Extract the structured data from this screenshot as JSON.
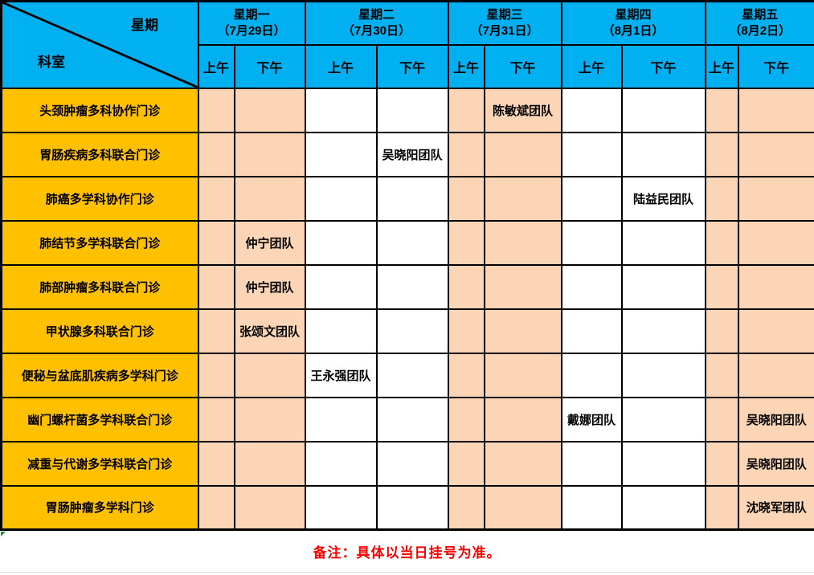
{
  "header": {
    "corner": {
      "week": "星期",
      "dept": "科室"
    },
    "am_label": "上午",
    "pm_label": "下午",
    "days": [
      {
        "label": "星期一",
        "date": "（7月29日）",
        "shaded": true
      },
      {
        "label": "星期二",
        "date": "（7月30日）",
        "shaded": false
      },
      {
        "label": "星期三",
        "date": "（7月31日）",
        "shaded": true
      },
      {
        "label": "星期四",
        "date": "（8月1日）",
        "shaded": false
      },
      {
        "label": "星期五",
        "date": "（8月2日）",
        "shaded": true
      }
    ]
  },
  "rows": [
    {
      "dept": "头颈肿瘤多科协作门诊",
      "cells": [
        "",
        "",
        "",
        "",
        "",
        "陈敏斌团队",
        "",
        "",
        "",
        ""
      ]
    },
    {
      "dept": "胃肠疾病多科联合门诊",
      "cells": [
        "",
        "",
        "",
        "吴晓阳团队",
        "",
        "",
        "",
        "",
        "",
        ""
      ]
    },
    {
      "dept": "肺癌多学科协作门诊",
      "cells": [
        "",
        "",
        "",
        "",
        "",
        "",
        "",
        "陆益民团队",
        "",
        ""
      ]
    },
    {
      "dept": "肺结节多学科联合门诊",
      "cells": [
        "",
        "仲宁团队",
        "",
        "",
        "",
        "",
        "",
        "",
        "",
        ""
      ]
    },
    {
      "dept": "肺部肿瘤多科联合门诊",
      "cells": [
        "",
        "仲宁团队",
        "",
        "",
        "",
        "",
        "",
        "",
        "",
        ""
      ]
    },
    {
      "dept": "甲状腺多科联合门诊",
      "cells": [
        "",
        "张颂文团队",
        "",
        "",
        "",
        "",
        "",
        "",
        "",
        ""
      ]
    },
    {
      "dept": "便秘与盆底肌疾病多学科门诊",
      "cells": [
        "",
        "",
        "王永强团队",
        "",
        "",
        "",
        "",
        "",
        "",
        ""
      ]
    },
    {
      "dept": "幽门螺杆菌多学科联合门诊",
      "cells": [
        "",
        "",
        "",
        "",
        "",
        "",
        "戴娜团队",
        "",
        "",
        "吴晓阳团队"
      ]
    },
    {
      "dept": "减重与代谢多学科联合门诊",
      "cells": [
        "",
        "",
        "",
        "",
        "",
        "",
        "",
        "",
        "",
        "吴晓阳团队"
      ]
    },
    {
      "dept": "胃肠肿瘤多学科门诊",
      "cells": [
        "",
        "",
        "",
        "",
        "",
        "",
        "",
        "",
        "",
        "沈晓军团队"
      ]
    }
  ],
  "footer": {
    "note": "备注：具体以当日挂号为准。"
  },
  "colors": {
    "header_blue": "#00B0F0",
    "dept_yellow": "#FFC000",
    "shaded_peach": "#FBD5B5",
    "note_red": "#FF0000",
    "marker_green": "#1E8E3E",
    "grid_black": "#000000"
  }
}
